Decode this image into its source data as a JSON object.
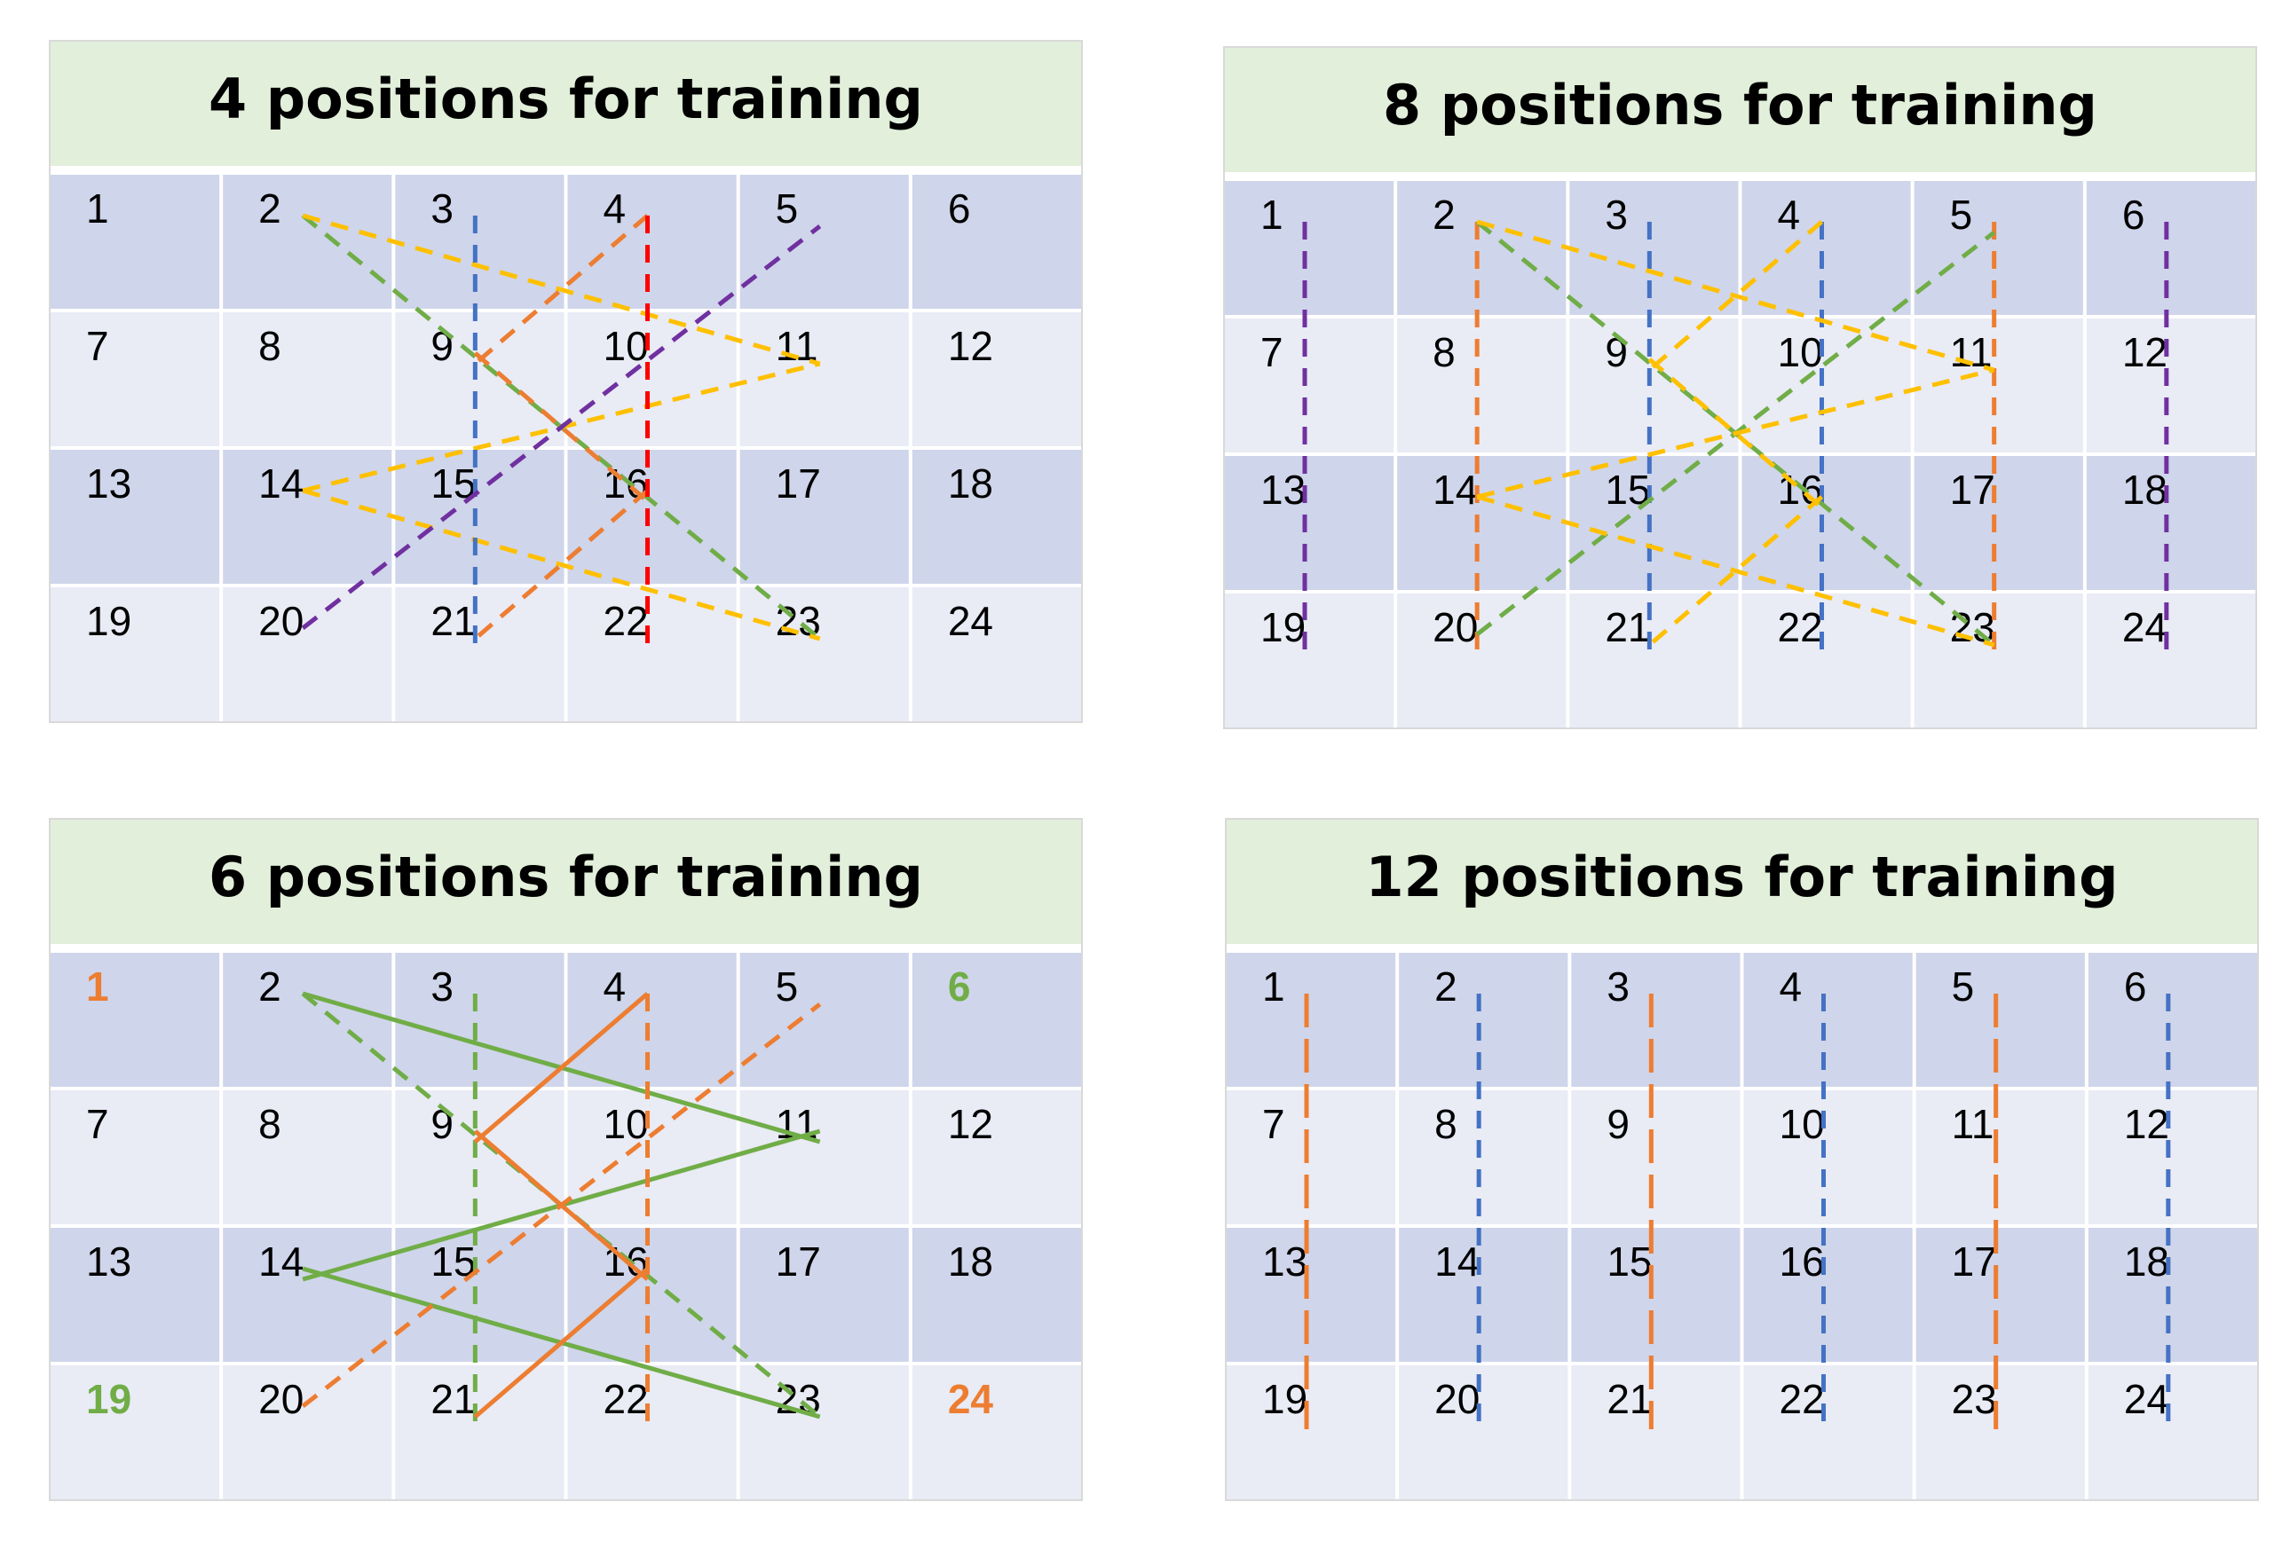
{
  "colors": {
    "header_bg": "#e2efda",
    "dark_row": "#cfd5ea",
    "light_row": "#e9ebf5",
    "gridline": "#ffffff",
    "text": "#000000",
    "orange": "#ed7d31",
    "green": "#70ad47",
    "yellow": "#ffc000",
    "blue": "#4472c4",
    "purple": "#7030a0",
    "red": "#ff0000"
  },
  "panels": [
    {
      "id": "4-positions",
      "title": "4 positions for training",
      "cell_colors": {},
      "bold_cells": [],
      "lines": [
        {
          "from": 2,
          "to": 23,
          "color": "green",
          "style": "dashed"
        },
        {
          "from": 2,
          "to": 11,
          "color": "yellow",
          "style": "dashed"
        },
        {
          "from": 14,
          "to": 11,
          "color": "yellow",
          "style": "dashed"
        },
        {
          "from": 14,
          "to": 23,
          "color": "yellow",
          "style": "dashed"
        },
        {
          "from": 4,
          "to": 9,
          "color": "orange",
          "style": "dashed"
        },
        {
          "from": 9,
          "to": 16,
          "color": "orange",
          "style": "dashed"
        },
        {
          "from": 16,
          "to": 21,
          "color": "orange",
          "style": "dashed"
        },
        {
          "from": 3,
          "to": 21,
          "color": "blue",
          "style": "dashed"
        },
        {
          "from": 4,
          "to": 22,
          "color": "red",
          "style": "dashed"
        },
        {
          "from": 20,
          "to": 5,
          "color": "purple",
          "style": "dashed"
        }
      ]
    },
    {
      "id": "8-positions",
      "title": "8 positions for training",
      "cell_colors": {},
      "bold_cells": [],
      "lines": [
        {
          "from": 1,
          "to": 19,
          "color": "purple",
          "style": "dashed"
        },
        {
          "from": 6,
          "to": 24,
          "color": "purple",
          "style": "dashed"
        },
        {
          "from": 2,
          "to": 20,
          "color": "orange",
          "style": "dashed"
        },
        {
          "from": 5,
          "to": 23,
          "color": "orange",
          "style": "dashed"
        },
        {
          "from": 3,
          "to": 21,
          "color": "blue",
          "style": "dashed"
        },
        {
          "from": 4,
          "to": 22,
          "color": "blue",
          "style": "dashed"
        },
        {
          "from": 2,
          "to": 23,
          "color": "green",
          "style": "dashed"
        },
        {
          "from": 20,
          "to": 5,
          "color": "green",
          "style": "dashed"
        },
        {
          "from": 2,
          "to": 11,
          "color": "yellow",
          "style": "dashed"
        },
        {
          "from": 14,
          "to": 11,
          "color": "yellow",
          "style": "dashed"
        },
        {
          "from": 14,
          "to": 23,
          "color": "yellow",
          "style": "dashed"
        },
        {
          "from": 4,
          "to": 9,
          "color": "yellow",
          "style": "dashed"
        },
        {
          "from": 9,
          "to": 16,
          "color": "yellow",
          "style": "dashed"
        },
        {
          "from": 16,
          "to": 21,
          "color": "yellow",
          "style": "dashed"
        }
      ]
    },
    {
      "id": "6-positions",
      "title": "6 positions for training",
      "cell_colors": {
        "1": "orange",
        "24": "orange",
        "6": "green",
        "19": "green"
      },
      "bold_cells": [
        24
      ],
      "lines": [
        {
          "from": 2,
          "to": 11,
          "color": "green",
          "style": "solid"
        },
        {
          "from": 11,
          "to": 14,
          "color": "green",
          "style": "solid"
        },
        {
          "from": 14,
          "to": 23,
          "color": "green",
          "style": "solid"
        },
        {
          "from": 2,
          "to": 23,
          "color": "green",
          "style": "dashed"
        },
        {
          "from": 3,
          "to": 21,
          "color": "green",
          "style": "dashed"
        },
        {
          "from": 4,
          "to": 9,
          "color": "orange",
          "style": "solid"
        },
        {
          "from": 9,
          "to": 16,
          "color": "orange",
          "style": "solid"
        },
        {
          "from": 16,
          "to": 21,
          "color": "orange",
          "style": "solid"
        },
        {
          "from": 4,
          "to": 22,
          "color": "orange",
          "style": "dashed"
        },
        {
          "from": 20,
          "to": 5,
          "color": "orange",
          "style": "dashed"
        }
      ]
    },
    {
      "id": "12-positions",
      "title": "12 positions for training",
      "cell_colors": {},
      "bold_cells": [],
      "lines": [
        {
          "from": 1,
          "to": 19,
          "color": "orange",
          "style": "longdash"
        },
        {
          "from": 2,
          "to": 20,
          "color": "blue",
          "style": "dashed"
        },
        {
          "from": 3,
          "to": 21,
          "color": "orange",
          "style": "longdash"
        },
        {
          "from": 4,
          "to": 22,
          "color": "blue",
          "style": "dashed"
        },
        {
          "from": 5,
          "to": 23,
          "color": "orange",
          "style": "longdash"
        },
        {
          "from": 6,
          "to": 24,
          "color": "blue",
          "style": "dashed"
        }
      ]
    }
  ]
}
